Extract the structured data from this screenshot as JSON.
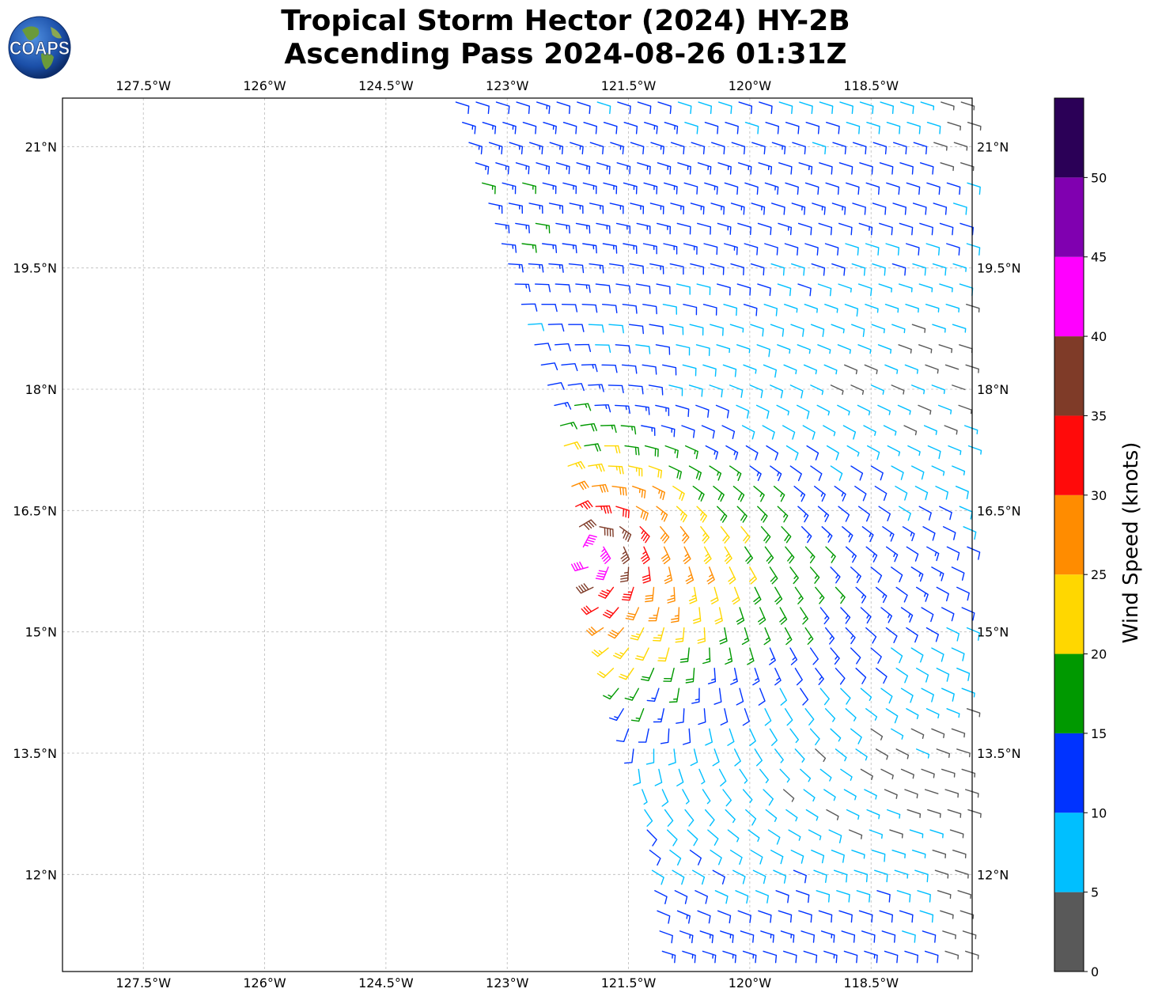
{
  "header": {
    "title_line1": "Tropical Storm Hector (2024) HY-2B",
    "title_line2": "Ascending Pass 2024-08-26 01:31Z",
    "logo_text": "COAPS"
  },
  "map": {
    "lon_range": [
      -128.5,
      -117.25
    ],
    "lat_range": [
      10.8,
      21.6
    ],
    "lon_ticks": [
      {
        "value": -127.5,
        "label": "127.5°W"
      },
      {
        "value": -126.0,
        "label": "126°W"
      },
      {
        "value": -124.5,
        "label": "124.5°W"
      },
      {
        "value": -123.0,
        "label": "123°W"
      },
      {
        "value": -121.5,
        "label": "121.5°W"
      },
      {
        "value": -120.0,
        "label": "120°W"
      },
      {
        "value": -118.5,
        "label": "118.5°W"
      }
    ],
    "lat_ticks": [
      {
        "value": 21.0,
        "label": "21°N"
      },
      {
        "value": 19.5,
        "label": "19.5°N"
      },
      {
        "value": 18.0,
        "label": "18°N"
      },
      {
        "value": 16.5,
        "label": "16.5°N"
      },
      {
        "value": 15.0,
        "label": "15°N"
      },
      {
        "value": 13.5,
        "label": "13.5°N"
      },
      {
        "value": 12.0,
        "label": "12°N"
      }
    ],
    "gridlines": true,
    "storm_center": {
      "lon": -122.0,
      "lat": 16.0
    },
    "swath_west_edge": [
      [
        -123.7,
        21.6
      ],
      [
        -122.4,
        17.6
      ],
      [
        -122.1,
        16.0
      ],
      [
        -121.4,
        13.2
      ],
      [
        -121.1,
        10.8
      ]
    ],
    "barb_grid_spacing_deg": 0.25
  },
  "colorbar": {
    "label": "Wind Speed (knots)",
    "range": [
      0,
      55
    ],
    "bins": [
      {
        "min": 0,
        "max": 5,
        "color": "#595959"
      },
      {
        "min": 5,
        "max": 10,
        "color": "#00bfff"
      },
      {
        "min": 10,
        "max": 15,
        "color": "#0033ff"
      },
      {
        "min": 15,
        "max": 20,
        "color": "#009900"
      },
      {
        "min": 20,
        "max": 25,
        "color": "#ffd700"
      },
      {
        "min": 25,
        "max": 30,
        "color": "#ff8c00"
      },
      {
        "min": 30,
        "max": 35,
        "color": "#ff0a0a"
      },
      {
        "min": 35,
        "max": 40,
        "color": "#7f3b28"
      },
      {
        "min": 40,
        "max": 45,
        "color": "#ff00ff"
      },
      {
        "min": 45,
        "max": 50,
        "color": "#8000b0"
      },
      {
        "min": 50,
        "max": 55,
        "color": "#2b0057"
      }
    ],
    "ticks": [
      "0",
      "5",
      "10",
      "15",
      "20",
      "25",
      "30",
      "35",
      "40",
      "45",
      "50"
    ]
  }
}
